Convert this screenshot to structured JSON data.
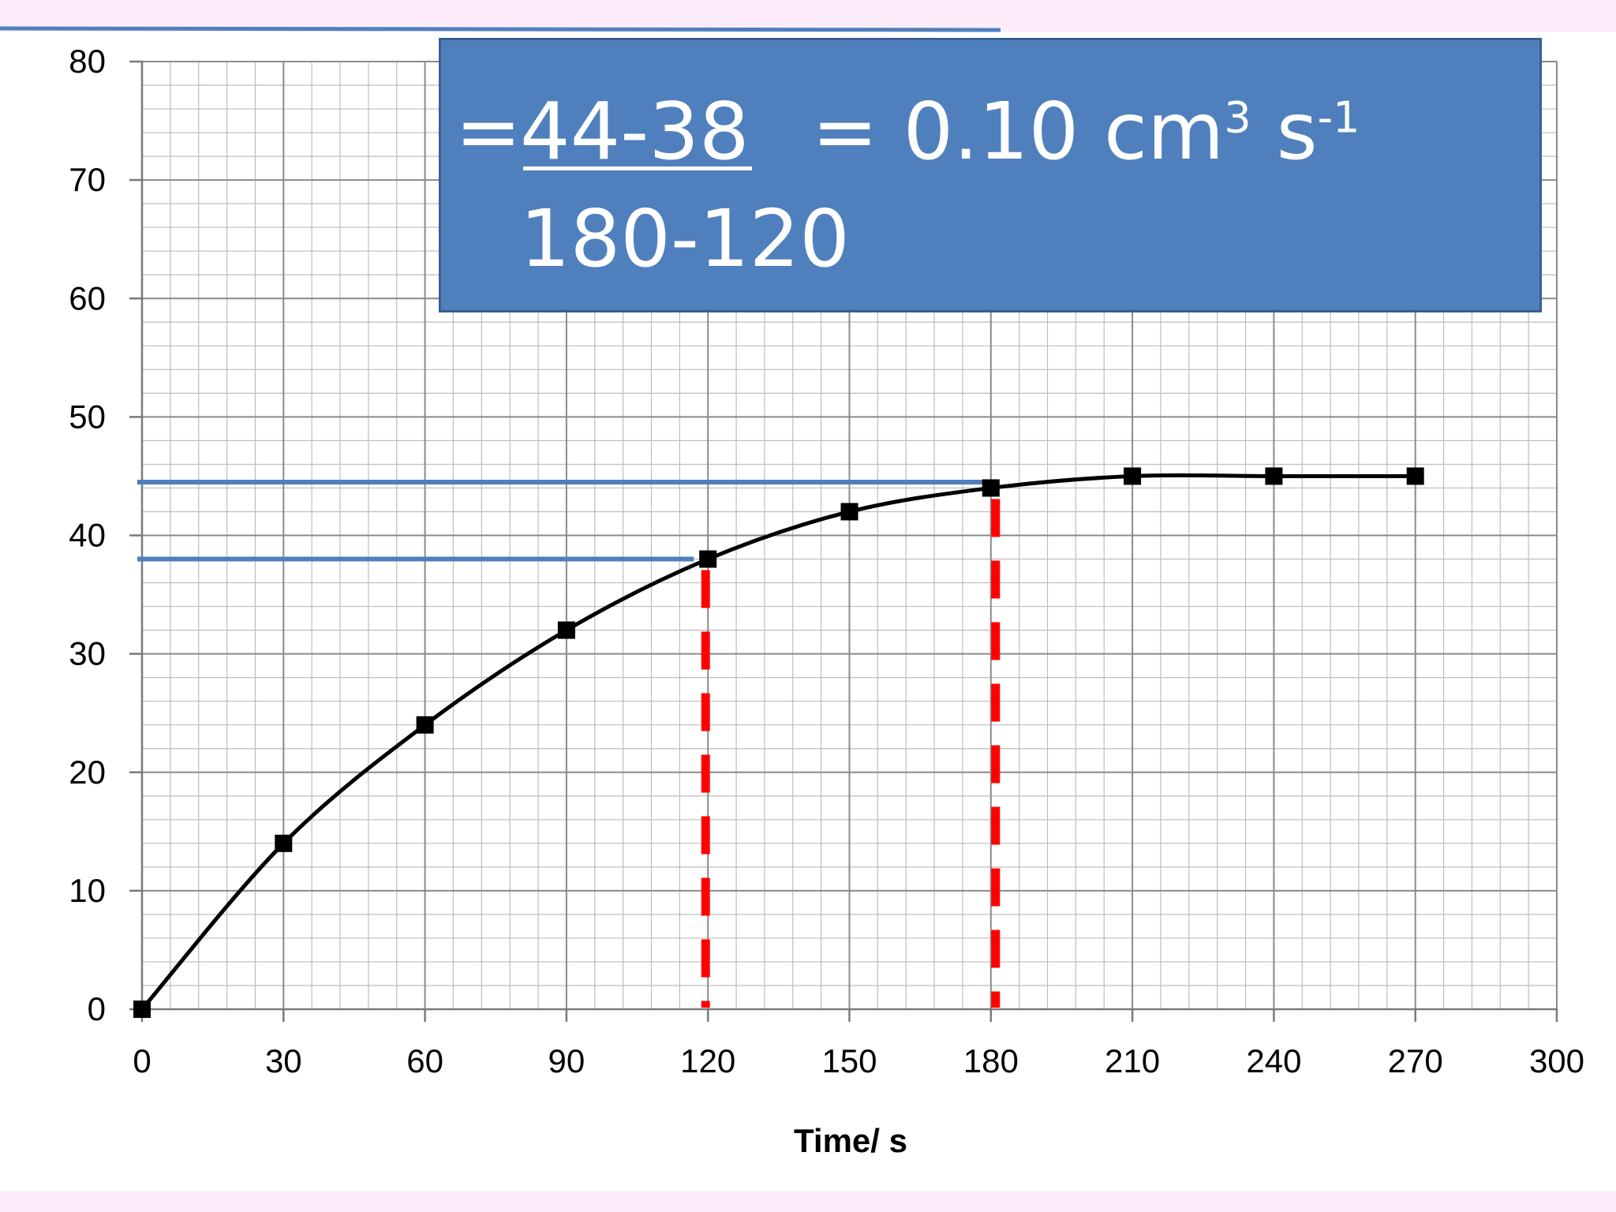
{
  "chart_data": {
    "type": "line",
    "x": [
      0,
      30,
      60,
      90,
      120,
      150,
      180,
      210,
      240,
      270
    ],
    "y": [
      0,
      14,
      24,
      32,
      38,
      42,
      44,
      45,
      45,
      45
    ],
    "xlabel": "Time/ s",
    "ylabel": "",
    "xlim": [
      0,
      300
    ],
    "ylim": [
      0,
      80
    ],
    "x_ticks": [
      0,
      30,
      60,
      90,
      120,
      150,
      180,
      210,
      240,
      270,
      300
    ],
    "y_ticks": [
      0,
      10,
      20,
      30,
      40,
      50,
      60,
      70,
      80
    ],
    "grid": true,
    "marker": "square",
    "line_color": "#000000",
    "reference_lines": {
      "horizontal": [
        {
          "y": 38,
          "x_to": 117,
          "color": "#4f80bd"
        },
        {
          "y": 44.5,
          "x_to": 181,
          "color": "#4f80bd"
        }
      ],
      "vertical": [
        {
          "x": 119.5,
          "y_to": 38,
          "color": "#ff0000",
          "style": "dashed"
        },
        {
          "x": 181,
          "y_to": 44,
          "color": "#ff0000",
          "style": "dashed"
        }
      ]
    }
  },
  "formula": {
    "equals_1": "=",
    "numerator": "44-38",
    "denominator": "180-120",
    "result": "= 0.10 cm",
    "unit_exp_1": "3",
    "unit_s": " s",
    "unit_exp_2": "-1"
  },
  "colors": {
    "slide_background": "#fcecfa",
    "formula_box": "#4f80bd",
    "dashed_lines": "#ff0000",
    "guide_lines": "#4f80bd"
  }
}
